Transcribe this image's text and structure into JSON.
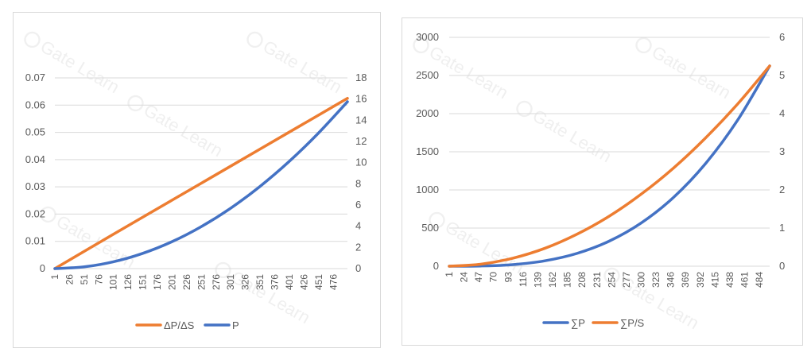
{
  "watermark": {
    "text": "Gate Learn"
  },
  "chart_data": [
    {
      "type": "line",
      "title": "",
      "xlabel": "",
      "ylabel": "",
      "categories": [
        "1",
        "26",
        "51",
        "76",
        "101",
        "126",
        "151",
        "176",
        "201",
        "226",
        "251",
        "276",
        "301",
        "326",
        "351",
        "376",
        "401",
        "426",
        "451",
        "476"
      ],
      "x_range": [
        1,
        500
      ],
      "y_left": {
        "ticks": [
          "0",
          "0.01",
          "0.02",
          "0.03",
          "0.04",
          "0.05",
          "0.06",
          "0.07"
        ],
        "range": [
          0,
          0.07
        ]
      },
      "y_right": {
        "ticks": [
          "0",
          "2",
          "4",
          "6",
          "8",
          "10",
          "12",
          "14",
          "16",
          "18"
        ],
        "range": [
          0,
          18
        ]
      },
      "grid": true,
      "legend_position": "bottom",
      "series": [
        {
          "name": "ΔP/ΔS",
          "axis": "left",
          "color": "#ed7d31",
          "x": [
            1,
            100,
            200,
            300,
            400,
            500
          ],
          "y": [
            0.0,
            0.0125,
            0.025,
            0.0375,
            0.05,
            0.0625
          ]
        },
        {
          "name": "P",
          "axis": "right",
          "color": "#4472c4",
          "x": [
            1,
            50,
            100,
            150,
            200,
            250,
            300,
            350,
            400,
            450,
            500
          ],
          "y": [
            0.0,
            0.16,
            0.63,
            1.42,
            2.52,
            3.94,
            5.67,
            7.72,
            10.08,
            12.76,
            15.75
          ]
        }
      ]
    },
    {
      "type": "line",
      "title": "",
      "xlabel": "",
      "ylabel": "",
      "categories": [
        "1",
        "24",
        "47",
        "70",
        "93",
        "116",
        "139",
        "162",
        "185",
        "208",
        "231",
        "254",
        "277",
        "300",
        "323",
        "346",
        "369",
        "392",
        "415",
        "438",
        "461",
        "484"
      ],
      "x_range": [
        1,
        500
      ],
      "y_left": {
        "ticks": [
          "0",
          "500",
          "1000",
          "1500",
          "2000",
          "2500",
          "3000"
        ],
        "range": [
          0,
          3000
        ]
      },
      "y_right": {
        "ticks": [
          "0",
          "1",
          "2",
          "3",
          "4",
          "5",
          "6"
        ],
        "range": [
          0,
          6
        ]
      },
      "grid": true,
      "legend_position": "bottom",
      "series": [
        {
          "name": "∑P",
          "axis": "left",
          "color": "#4472c4",
          "x": [
            1,
            50,
            100,
            150,
            200,
            250,
            300,
            350,
            400,
            450,
            500
          ],
          "y": [
            0,
            3,
            21,
            71,
            168,
            328,
            567,
            900,
            1344,
            1913,
            2625
          ]
        },
        {
          "name": "∑P/S",
          "axis": "right",
          "color": "#ed7d31",
          "x": [
            1,
            50,
            100,
            150,
            200,
            250,
            300,
            350,
            400,
            450,
            500
          ],
          "y": [
            0.0,
            0.053,
            0.21,
            0.47,
            0.84,
            1.31,
            1.89,
            2.57,
            3.36,
            4.25,
            5.25
          ]
        }
      ]
    }
  ]
}
